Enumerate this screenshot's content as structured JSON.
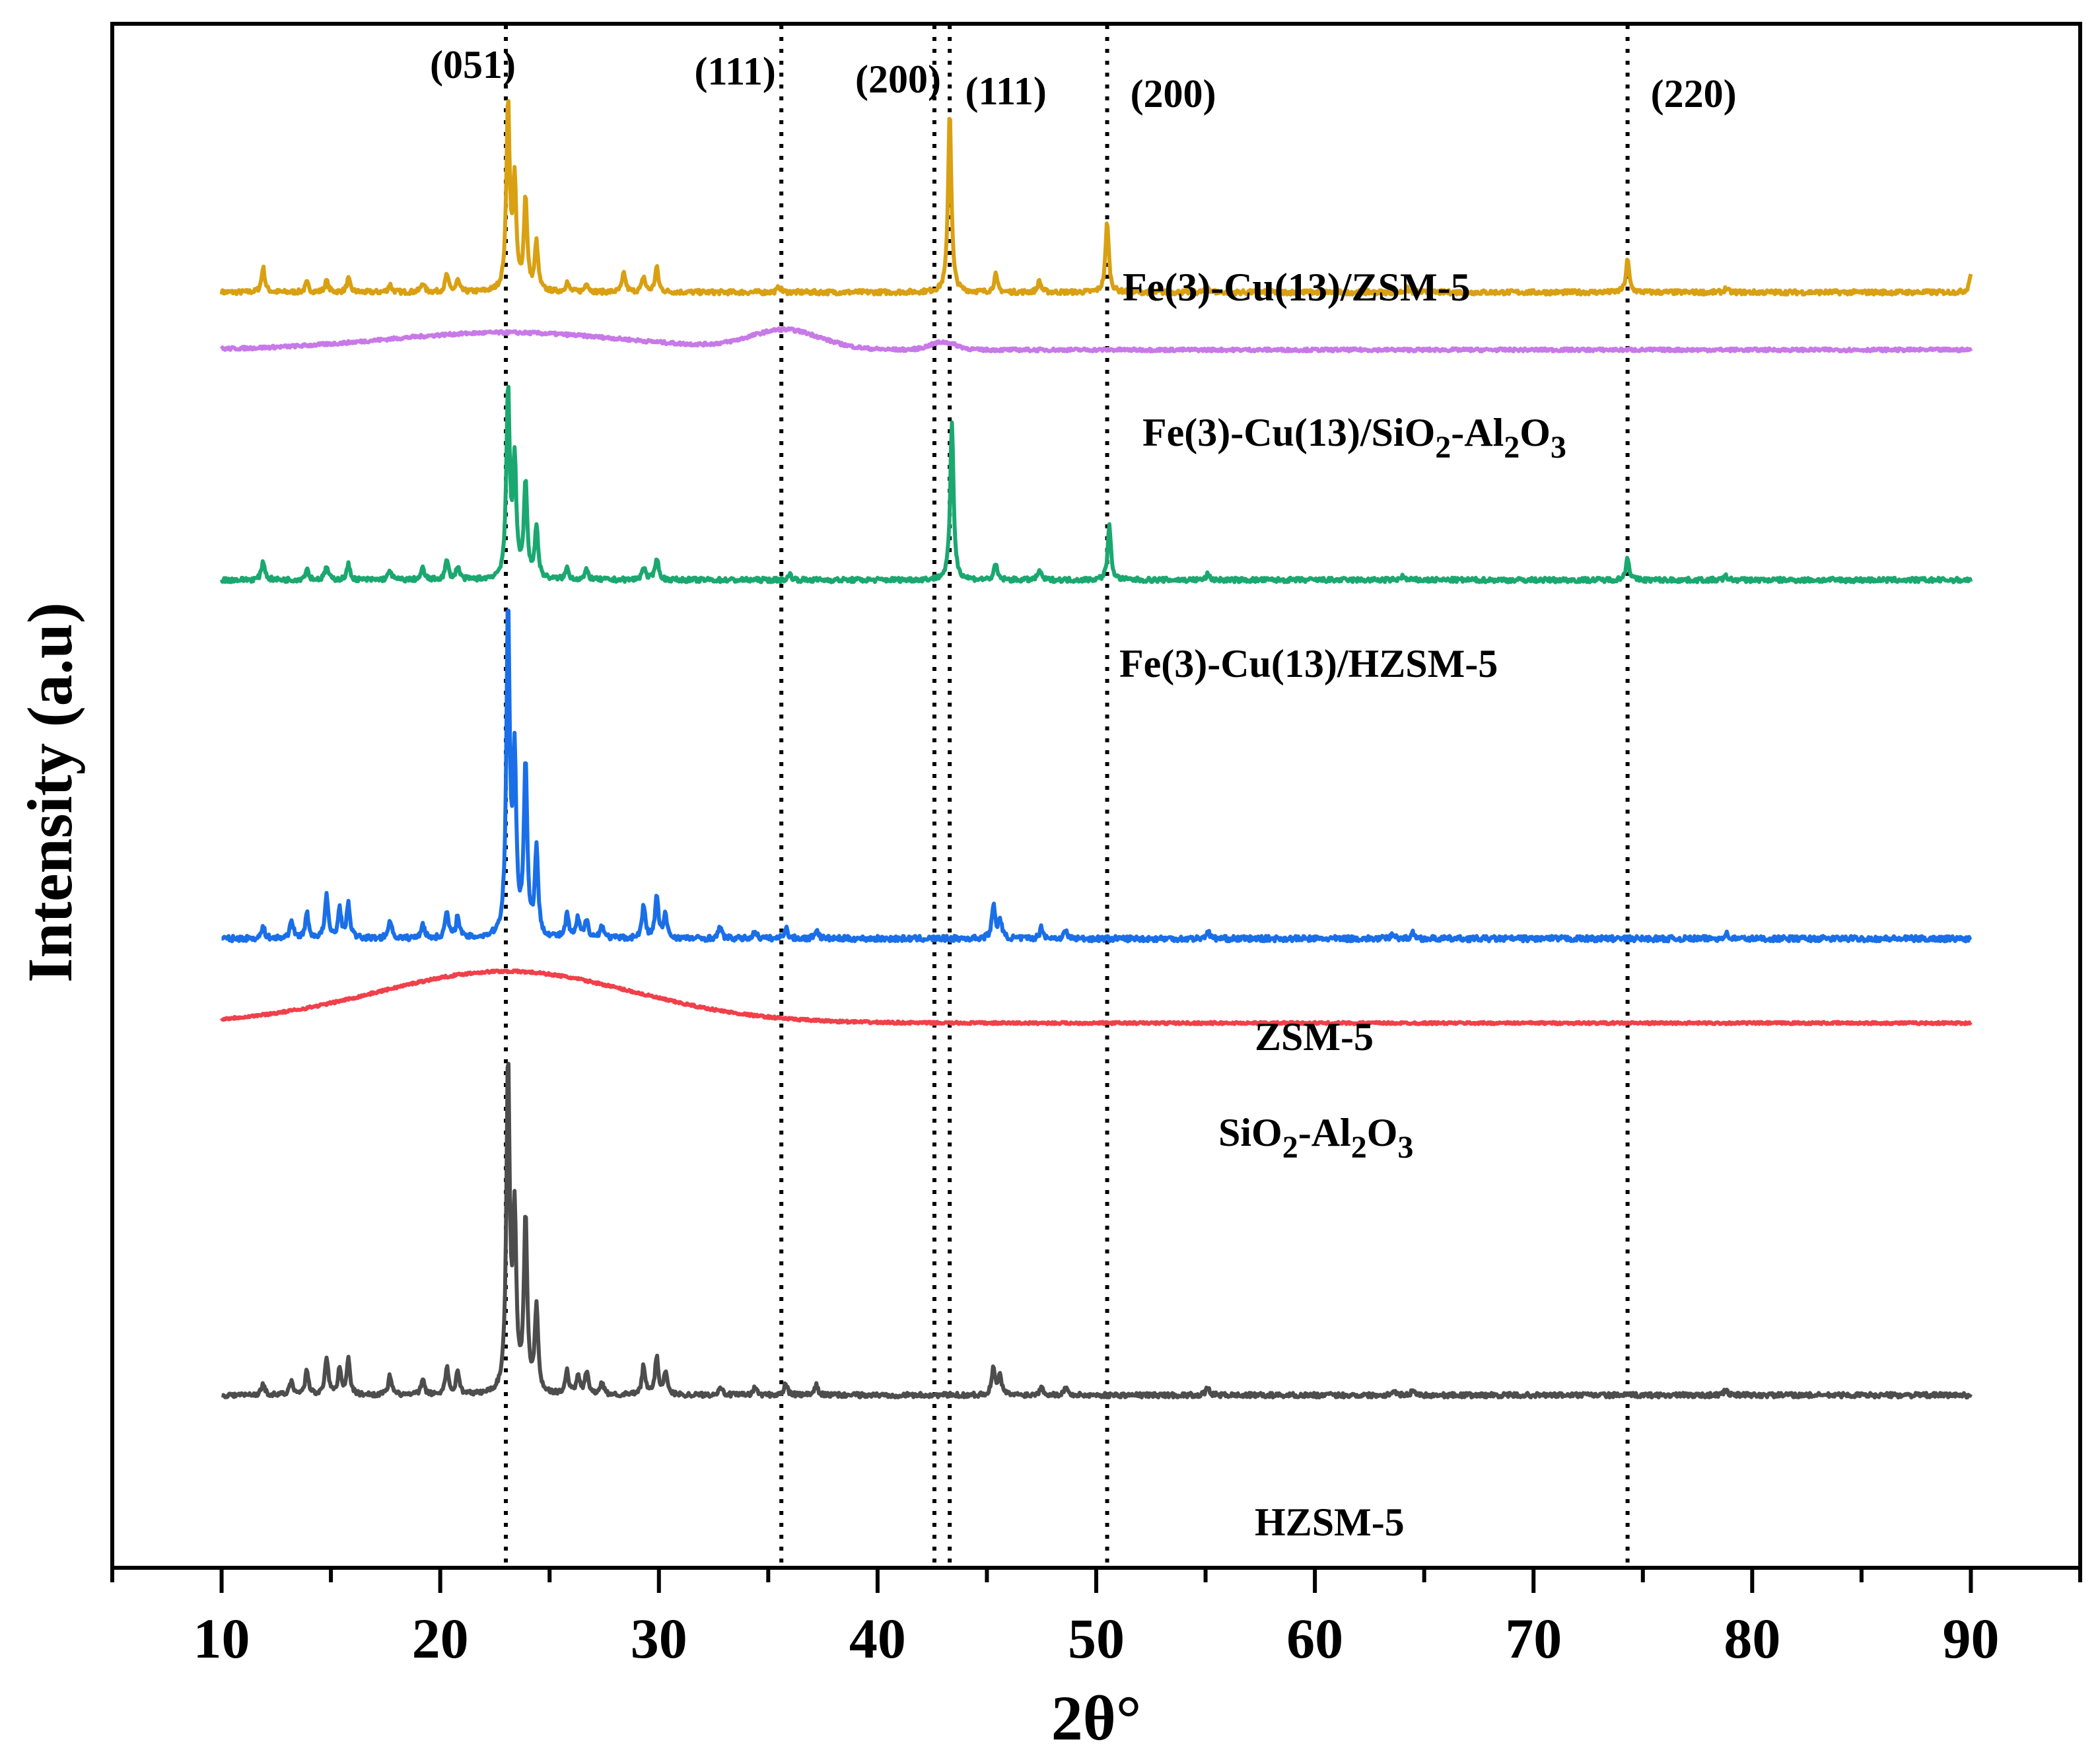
{
  "chart_data": {
    "type": "line",
    "title": "",
    "xlabel": "2θ°",
    "ylabel": "Intensity (a.u)",
    "xlim": [
      5,
      95
    ],
    "x_ticks": [
      10,
      20,
      30,
      40,
      50,
      60,
      70,
      80,
      90
    ],
    "x_tick_labels": [
      "10",
      "20",
      "30",
      "40",
      "50",
      "60",
      "70",
      "80",
      "90"
    ],
    "y_ticks": [],
    "grid": false,
    "reference_lines": [
      {
        "x": 23.0,
        "label": "(051)"
      },
      {
        "x": 35.6,
        "label": "(111)"
      },
      {
        "x": 42.6,
        "label": "(200)"
      },
      {
        "x": 43.3,
        "label": "(111)"
      },
      {
        "x": 50.5,
        "label": "(200)"
      },
      {
        "x": 74.3,
        "label": "(220)"
      }
    ],
    "series": [
      {
        "name": "Fe(3)-Cu(13)/ZSM-5",
        "label_parts": [
          "Fe(3)-Cu(13)/ZSM-5"
        ],
        "color": "#D9A012",
        "baseline": 2.25,
        "noise": 0.012,
        "broad": [],
        "peaks": [
          [
            11.9,
            0.13
          ],
          [
            13.9,
            0.05
          ],
          [
            14.8,
            0.06
          ],
          [
            15.8,
            0.07
          ],
          [
            17.7,
            0.04
          ],
          [
            19.2,
            0.05
          ],
          [
            20.3,
            0.09
          ],
          [
            20.8,
            0.06
          ],
          [
            23.1,
            0.98
          ],
          [
            23.4,
            0.55
          ],
          [
            23.9,
            0.48
          ],
          [
            24.4,
            0.25
          ],
          [
            25.8,
            0.05
          ],
          [
            26.7,
            0.05
          ],
          [
            28.4,
            0.1
          ],
          [
            29.3,
            0.08
          ],
          [
            29.9,
            0.13
          ],
          [
            35.5,
            0.03
          ],
          [
            43.3,
            0.95
          ],
          [
            45.4,
            0.09
          ],
          [
            47.4,
            0.06
          ],
          [
            50.5,
            0.37
          ],
          [
            55.1,
            0.03
          ],
          [
            64.2,
            0.02
          ],
          [
            74.3,
            0.17
          ],
          [
            78.8,
            0.02
          ],
          [
            90.0,
            0.1
          ]
        ]
      },
      {
        "name": "Fe(3)-Cu(13)/SiO2-Al2O3",
        "label_parts": [
          "Fe(3)-Cu(13)/SiO",
          "2",
          "-Al",
          "2",
          "O",
          "3"
        ],
        "color": "#C879E8",
        "baseline": 1.95,
        "noise": 0.008,
        "broad": [
          [
            23.0,
            5.5,
            0.09
          ],
          [
            35.8,
            1.6,
            0.1
          ],
          [
            43.0,
            0.6,
            0.04
          ]
        ],
        "peaks": []
      },
      {
        "name": "Fe(3)-Cu(13)/HZSM-5",
        "label_parts": [
          "Fe(3)-Cu(13)/HZSM-5"
        ],
        "color": "#1BA870",
        "baseline": 0.75,
        "noise": 0.012,
        "broad": [],
        "peaks": [
          [
            11.9,
            0.1
          ],
          [
            13.9,
            0.06
          ],
          [
            14.8,
            0.07
          ],
          [
            15.8,
            0.08
          ],
          [
            17.7,
            0.05
          ],
          [
            19.2,
            0.06
          ],
          [
            20.3,
            0.1
          ],
          [
            20.8,
            0.07
          ],
          [
            23.1,
            0.98
          ],
          [
            23.4,
            0.6
          ],
          [
            23.9,
            0.5
          ],
          [
            24.4,
            0.27
          ],
          [
            25.8,
            0.06
          ],
          [
            26.7,
            0.05
          ],
          [
            29.3,
            0.07
          ],
          [
            29.9,
            0.12
          ],
          [
            36.0,
            0.03
          ],
          [
            43.4,
            0.82
          ],
          [
            45.4,
            0.08
          ],
          [
            47.4,
            0.05
          ],
          [
            50.6,
            0.28
          ],
          [
            55.1,
            0.03
          ],
          [
            64.0,
            0.02
          ],
          [
            74.3,
            0.12
          ],
          [
            78.8,
            0.02
          ]
        ]
      },
      {
        "name": "ZSM-5",
        "label_parts": [
          "ZSM-5"
        ],
        "color": "#1A6FE8",
        "baseline": -1.12,
        "noise": 0.014,
        "broad": [],
        "peaks": [
          [
            11.9,
            0.06
          ],
          [
            13.2,
            0.1
          ],
          [
            13.9,
            0.13
          ],
          [
            14.8,
            0.22
          ],
          [
            15.4,
            0.15
          ],
          [
            15.8,
            0.18
          ],
          [
            17.7,
            0.1
          ],
          [
            19.2,
            0.08
          ],
          [
            20.3,
            0.14
          ],
          [
            20.8,
            0.12
          ],
          [
            23.1,
            1.7
          ],
          [
            23.4,
            0.9
          ],
          [
            23.9,
            0.9
          ],
          [
            24.4,
            0.45
          ],
          [
            25.8,
            0.12
          ],
          [
            26.3,
            0.1
          ],
          [
            26.7,
            0.1
          ],
          [
            27.4,
            0.07
          ],
          [
            29.3,
            0.17
          ],
          [
            29.9,
            0.22
          ],
          [
            30.3,
            0.12
          ],
          [
            32.8,
            0.06
          ],
          [
            34.4,
            0.04
          ],
          [
            35.8,
            0.06
          ],
          [
            37.2,
            0.05
          ],
          [
            45.3,
            0.17
          ],
          [
            45.6,
            0.1
          ],
          [
            47.5,
            0.06
          ],
          [
            48.6,
            0.04
          ],
          [
            55.1,
            0.04
          ],
          [
            63.6,
            0.03
          ],
          [
            64.5,
            0.03
          ],
          [
            78.8,
            0.03
          ]
        ]
      },
      {
        "name": "SiO2-Al2O3",
        "label_parts": [
          "SiO",
          "2",
          "-Al",
          "2",
          "O",
          "3"
        ],
        "color": "#F0404A",
        "baseline": -1.56,
        "noise": 0.006,
        "broad": [
          [
            23.0,
            5.8,
            0.27
          ]
        ],
        "peaks": []
      },
      {
        "name": "HZSM-5",
        "label_parts": [
          "HZSM-5"
        ],
        "color": "#4D4D4D",
        "baseline": -3.5,
        "noise": 0.012,
        "broad": [],
        "peaks": [
          [
            11.9,
            0.06
          ],
          [
            13.2,
            0.08
          ],
          [
            13.9,
            0.13
          ],
          [
            14.8,
            0.2
          ],
          [
            15.4,
            0.14
          ],
          [
            15.8,
            0.18
          ],
          [
            17.7,
            0.1
          ],
          [
            19.2,
            0.08
          ],
          [
            20.3,
            0.14
          ],
          [
            20.8,
            0.12
          ],
          [
            23.1,
            1.7
          ],
          [
            23.4,
            0.9
          ],
          [
            23.9,
            0.9
          ],
          [
            24.4,
            0.45
          ],
          [
            25.8,
            0.12
          ],
          [
            26.3,
            0.1
          ],
          [
            26.7,
            0.12
          ],
          [
            27.4,
            0.06
          ],
          [
            29.3,
            0.15
          ],
          [
            29.9,
            0.2
          ],
          [
            30.3,
            0.12
          ],
          [
            32.8,
            0.05
          ],
          [
            34.4,
            0.04
          ],
          [
            35.8,
            0.06
          ],
          [
            37.2,
            0.05
          ],
          [
            45.3,
            0.14
          ],
          [
            45.6,
            0.1
          ],
          [
            47.5,
            0.05
          ],
          [
            48.6,
            0.04
          ],
          [
            55.1,
            0.04
          ],
          [
            63.6,
            0.03
          ],
          [
            64.5,
            0.03
          ],
          [
            78.8,
            0.03
          ]
        ]
      }
    ]
  }
}
